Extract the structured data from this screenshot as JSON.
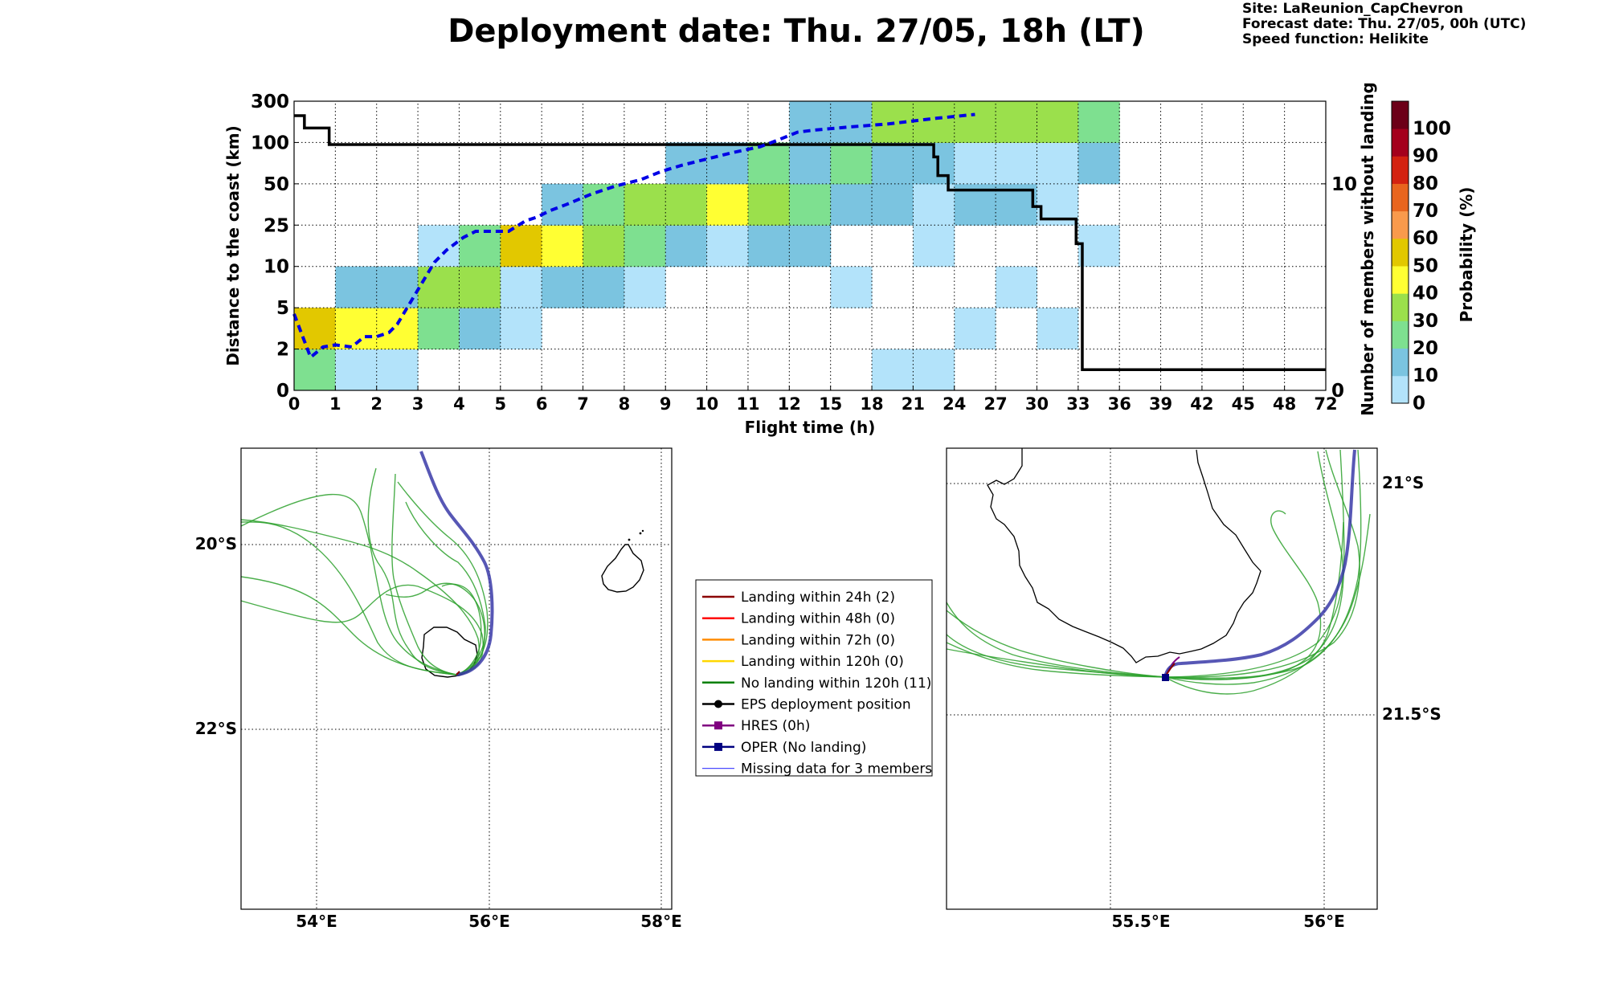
{
  "header": {
    "title": "Deployment date: Thu. 27/05, 18h (LT)",
    "site": "Site: LaReunion_CapChevron",
    "forecast_date": "Forecast date: Thu. 27/05, 00h (UTC)",
    "speed_function": "Speed function: Helikite"
  },
  "chart_data": [
    {
      "type": "heatmap",
      "xlabel": "Flight time (h)",
      "ylabel": "Distance to the coast (km)",
      "y2label": "Number of members without landing",
      "x_ticks": [
        "0",
        "1",
        "2",
        "3",
        "4",
        "5",
        "6",
        "7",
        "8",
        "9",
        "10",
        "11",
        "12",
        "15",
        "18",
        "21",
        "24",
        "27",
        "30",
        "33",
        "36",
        "39",
        "42",
        "45",
        "48",
        "72"
      ],
      "y_ticks": [
        "0",
        "2",
        "5",
        "10",
        "25",
        "50",
        "100",
        "300"
      ],
      "y2_ticks": [
        "0",
        "10"
      ],
      "colorbar": {
        "label": "Probability (%)",
        "ticks": [
          "0",
          "10",
          "20",
          "30",
          "40",
          "50",
          "60",
          "70",
          "80",
          "90",
          "100"
        ],
        "colors": [
          "#b3e3fa",
          "#7bc4e0",
          "#7ee090",
          "#9be04c",
          "#ffff33",
          "#e2c800",
          "#f99a4c",
          "#e8651e",
          "#d32210",
          "#a4001c",
          "#6c0018"
        ]
      },
      "cells_note": "each cell = [x_bin_index, y_bin_index, probability_class]",
      "cells": [
        [
          0,
          0,
          2
        ],
        [
          1,
          0,
          0
        ],
        [
          2,
          0,
          0
        ],
        [
          14,
          0,
          0
        ],
        [
          15,
          0,
          0
        ],
        [
          0,
          1,
          5
        ],
        [
          1,
          1,
          4
        ],
        [
          2,
          1,
          4
        ],
        [
          3,
          1,
          2
        ],
        [
          4,
          1,
          1
        ],
        [
          5,
          1,
          0
        ],
        [
          16,
          1,
          0
        ],
        [
          18,
          1,
          0
        ],
        [
          1,
          2,
          1
        ],
        [
          2,
          2,
          1
        ],
        [
          3,
          2,
          3
        ],
        [
          4,
          2,
          3
        ],
        [
          5,
          2,
          0
        ],
        [
          6,
          2,
          1
        ],
        [
          7,
          2,
          1
        ],
        [
          8,
          2,
          0
        ],
        [
          13,
          2,
          0
        ],
        [
          17,
          2,
          0
        ],
        [
          3,
          3,
          0
        ],
        [
          4,
          3,
          2
        ],
        [
          5,
          3,
          5
        ],
        [
          6,
          3,
          4
        ],
        [
          7,
          3,
          3
        ],
        [
          8,
          3,
          2
        ],
        [
          9,
          3,
          1
        ],
        [
          10,
          3,
          0
        ],
        [
          11,
          3,
          1
        ],
        [
          12,
          3,
          1
        ],
        [
          15,
          3,
          0
        ],
        [
          19,
          3,
          0
        ],
        [
          6,
          4,
          1
        ],
        [
          7,
          4,
          2
        ],
        [
          8,
          4,
          3
        ],
        [
          9,
          4,
          3
        ],
        [
          10,
          4,
          4
        ],
        [
          11,
          4,
          3
        ],
        [
          12,
          4,
          2
        ],
        [
          13,
          4,
          1
        ],
        [
          14,
          4,
          1
        ],
        [
          15,
          4,
          0
        ],
        [
          16,
          4,
          1
        ],
        [
          17,
          4,
          1
        ],
        [
          18,
          4,
          0
        ],
        [
          9,
          5,
          1
        ],
        [
          10,
          5,
          1
        ],
        [
          11,
          5,
          2
        ],
        [
          12,
          5,
          1
        ],
        [
          13,
          5,
          2
        ],
        [
          14,
          5,
          1
        ],
        [
          15,
          5,
          1
        ],
        [
          16,
          5,
          0
        ],
        [
          17,
          5,
          0
        ],
        [
          18,
          5,
          0
        ],
        [
          19,
          5,
          1
        ],
        [
          12,
          6,
          1
        ],
        [
          13,
          6,
          1
        ],
        [
          14,
          6,
          3
        ],
        [
          15,
          6,
          3
        ],
        [
          16,
          6,
          3
        ],
        [
          17,
          6,
          3
        ],
        [
          18,
          6,
          3
        ],
        [
          19,
          6,
          2
        ]
      ],
      "members_no_landing": {
        "note": "step line, [x_bin_position, count]",
        "y2lim": [
          0,
          14
        ],
        "points": [
          [
            0,
            13.3
          ],
          [
            0.25,
            13.3
          ],
          [
            0.25,
            12.7
          ],
          [
            0.85,
            12.7
          ],
          [
            0.85,
            11.9
          ],
          [
            15.5,
            11.9
          ],
          [
            15.5,
            11.3
          ],
          [
            15.6,
            11.3
          ],
          [
            15.6,
            10.4
          ],
          [
            15.85,
            10.4
          ],
          [
            15.85,
            9.7
          ],
          [
            17.9,
            9.7
          ],
          [
            17.9,
            8.9
          ],
          [
            18.1,
            8.9
          ],
          [
            18.1,
            8.3
          ],
          [
            18.95,
            8.3
          ],
          [
            18.95,
            7.1
          ],
          [
            19.1,
            7.1
          ],
          [
            19.1,
            1.0
          ],
          [
            25,
            1.0
          ]
        ]
      },
      "median_distance": {
        "style": "dashed blue",
        "points": [
          [
            0,
            1.85
          ],
          [
            0.4,
            0.8
          ],
          [
            0.7,
            1.05
          ],
          [
            1.0,
            1.1
          ],
          [
            1.4,
            1.05
          ],
          [
            1.7,
            1.3
          ],
          [
            2.0,
            1.3
          ],
          [
            2.3,
            1.4
          ],
          [
            2.5,
            1.6
          ],
          [
            2.8,
            2.1
          ],
          [
            3.1,
            2.6
          ],
          [
            3.4,
            3.1
          ],
          [
            3.7,
            3.4
          ],
          [
            4.1,
            3.7
          ],
          [
            4.4,
            3.85
          ],
          [
            4.8,
            3.85
          ],
          [
            5.2,
            3.85
          ],
          [
            5.6,
            4.1
          ],
          [
            5.9,
            4.2
          ],
          [
            6.2,
            4.35
          ],
          [
            6.6,
            4.5
          ],
          [
            7.2,
            4.75
          ],
          [
            7.8,
            4.95
          ],
          [
            8.4,
            5.1
          ],
          [
            8.9,
            5.3
          ],
          [
            9.4,
            5.45
          ],
          [
            10.0,
            5.6
          ],
          [
            10.6,
            5.75
          ],
          [
            11.3,
            5.9
          ],
          [
            11.7,
            6.05
          ],
          [
            12.2,
            6.25
          ],
          [
            12.6,
            6.3
          ],
          [
            13.5,
            6.38
          ],
          [
            14.4,
            6.45
          ],
          [
            15.5,
            6.58
          ],
          [
            16.5,
            6.68
          ]
        ]
      }
    },
    {
      "type": "line",
      "map": "wide",
      "x_ticks": [
        "54°E",
        "56°E",
        "58°E"
      ],
      "y_ticks": [
        "20°S",
        "22°S"
      ]
    },
    {
      "type": "line",
      "map": "zoom",
      "x_ticks": [
        "55.5°E",
        "56°E"
      ],
      "y_ticks": [
        "21°S",
        "21.5°S"
      ]
    }
  ],
  "legend": [
    {
      "label": "Landing within 24h (2)",
      "color": "#8b0000",
      "style": "line"
    },
    {
      "label": "Landing within 48h (0)",
      "color": "#ff0000",
      "style": "line"
    },
    {
      "label": "Landing within 72h (0)",
      "color": "#ff8c00",
      "style": "line"
    },
    {
      "label": "Landing within 120h (0)",
      "color": "#ffd700",
      "style": "line"
    },
    {
      "label": "No landing within 120h (11)",
      "color": "#008000",
      "style": "line"
    },
    {
      "label": "EPS deployment position",
      "color": "#000000",
      "style": "dot"
    },
    {
      "label": "HRES (0h)",
      "color": "#800080",
      "style": "square"
    },
    {
      "label": "OPER (No landing)",
      "color": "#000080",
      "style": "square"
    },
    {
      "label": "Missing data for 3 members",
      "color": "#4a4aff",
      "style": "thin"
    }
  ]
}
